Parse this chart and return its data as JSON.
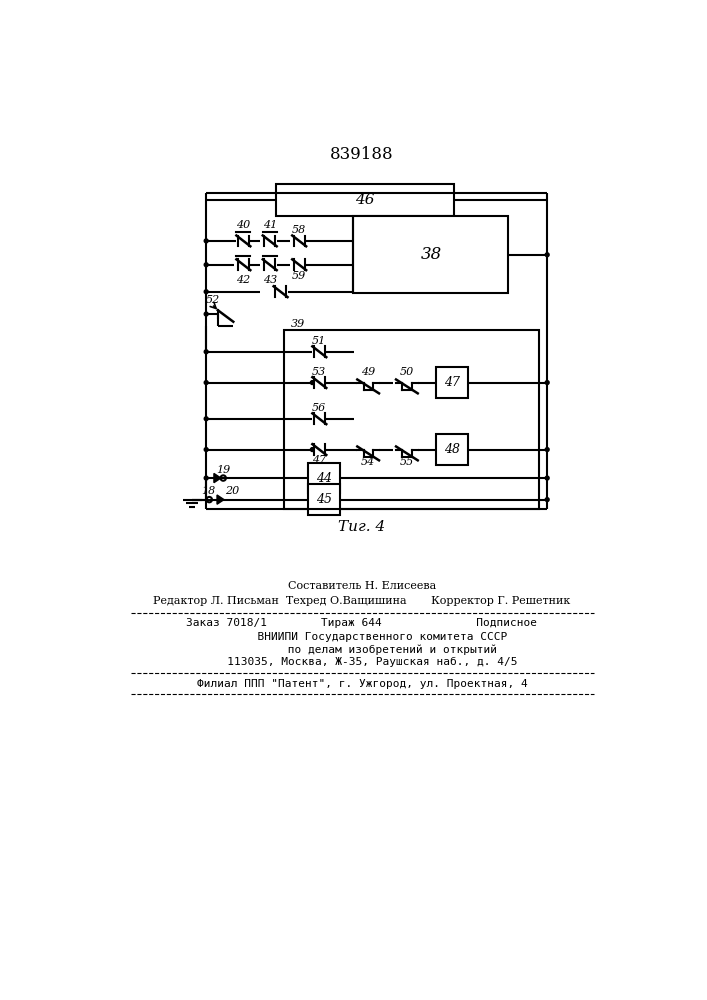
{
  "title": "839188",
  "fig_caption": "Τиг. 4",
  "bg": "#ffffff",
  "lc": "#000000",
  "footer1": "Составитель Н. Елисеева",
  "footer2": "Редактор Л. Письман  Техред О.Ващишина       Корректор Г. Решетник",
  "footer3": "Заказ 7018/1        Тираж 644              Подписное",
  "footer4": "      ВНИИПИ Государственного комитета СССР",
  "footer5": "         по делам изобретений и открытий",
  "footer6": "   113035, Москва, Ж-35, Раушская наб., д. 4/5",
  "footer7": "Филиал ППП \"Патент\", г. Ужгород, ул. Проектная, 4"
}
